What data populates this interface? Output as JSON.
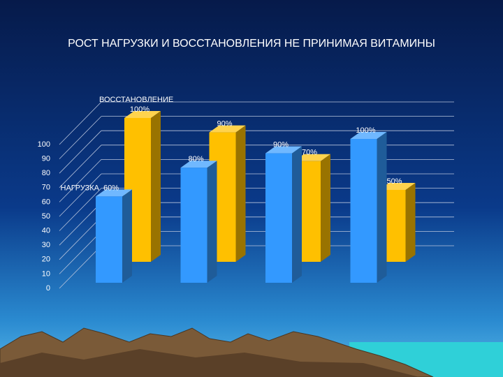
{
  "chart_data": {
    "type": "bar3d",
    "title": "РОСТ НАГРУЗКИ И ВОССТАНОВЛЕНИЯ НЕ ПРИНИМАЯ  ВИТАМИНЫ",
    "categories": [
      null,
      null,
      null,
      null
    ],
    "series": [
      {
        "name": "НАГРУЗКА",
        "color": "#3399ff",
        "values": [
          60,
          80,
          90,
          100
        ],
        "value_labels": [
          "60%",
          "80%",
          "90%",
          "100%"
        ]
      },
      {
        "name": "ВОССТАНОВЛЕНИЕ",
        "color": "#ffc000",
        "values": [
          100,
          90,
          70,
          50
        ],
        "value_labels": [
          "100%",
          "90%",
          "70%",
          "50%"
        ]
      }
    ],
    "ylim": [
      0,
      100
    ],
    "yticks": [
      0,
      10,
      20,
      30,
      40,
      50,
      60,
      70,
      80,
      90,
      100
    ],
    "grid": true
  }
}
